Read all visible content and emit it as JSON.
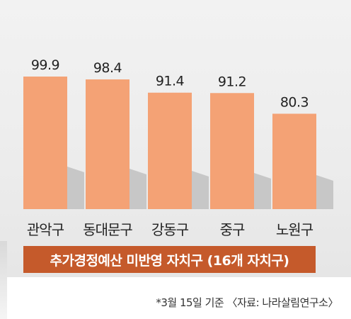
{
  "chart_data": {
    "type": "bar",
    "categories": [
      "관악구",
      "동대문구",
      "강동구",
      "중구",
      "노원구"
    ],
    "values": [
      99.9,
      98.4,
      91.4,
      91.2,
      80.3
    ],
    "value_labels": [
      "99.9",
      "98.4",
      "91.4",
      "91.2",
      "80.3"
    ],
    "ylim": [
      0,
      100
    ],
    "grid": false,
    "legend": "none"
  },
  "banner": {
    "text": "추가경정예산 미반영 자치구 (16개 자치구)"
  },
  "footnote": {
    "text": "*3월 15일 기준 〈자료: 나라살림연구소〉"
  },
  "colors": {
    "bar": "#f4a275",
    "bar_shadow": "#a9a9a9",
    "banner": "#c55a2b",
    "background": "#eeeeee"
  }
}
